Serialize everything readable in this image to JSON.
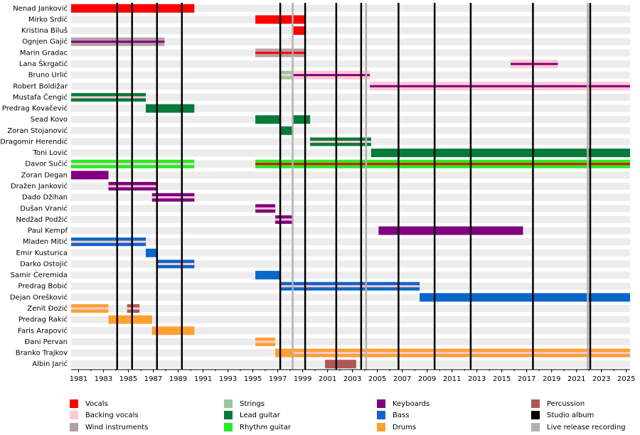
{
  "chart_data": {
    "type": "timeline",
    "xlim": [
      1980.4,
      2025.3
    ],
    "xticks": [
      1981,
      1983,
      1985,
      1987,
      1989,
      1991,
      1993,
      1995,
      1997,
      1999,
      2001,
      2003,
      2005,
      2007,
      2009,
      2011,
      2013,
      2015,
      2017,
      2019,
      2021,
      2023,
      2025
    ],
    "roles": [
      {
        "name": "Vocals",
        "color": "#ff0000"
      },
      {
        "name": "Backing vocals",
        "color": "#ffc8d2"
      },
      {
        "name": "Wind instruments",
        "color": "#b4a0a6"
      },
      {
        "name": "Strings",
        "color": "#99c89c"
      },
      {
        "name": "Lead guitar",
        "color": "#087a3a"
      },
      {
        "name": "Rhythm guitar",
        "color": "#22ee22"
      },
      {
        "name": "Keyboards",
        "color": "#800080"
      },
      {
        "name": "Bass",
        "color": "#0a66c8"
      },
      {
        "name": "Drums",
        "color": "#ffa030"
      },
      {
        "name": "Percussion",
        "color": "#b05656"
      }
    ],
    "events": [
      {
        "name": "Studio album",
        "color": "#000000",
        "x": [
          1984.1,
          1985.3,
          1987.3,
          1989.3,
          1997.2,
          1999.2,
          2001.7,
          2003.7,
          2006.7,
          2009.6,
          2012.5,
          2017.5,
          2022.1
        ]
      },
      {
        "name": "Live release recording",
        "color": "#b0b0b0",
        "x": [
          1998.2,
          2004.1,
          2021.9
        ]
      }
    ],
    "members": [
      {
        "name": "Nenad Janković",
        "periods": [
          {
            "start": 1980.4,
            "end": 1990.3,
            "role": "Vocals"
          }
        ]
      },
      {
        "name": "Mirko Srdić",
        "periods": [
          {
            "start": 1995.2,
            "end": 1999.2,
            "role": "Vocals"
          }
        ]
      },
      {
        "name": "Kristina Biluš",
        "periods": [
          {
            "start": 1998.2,
            "end": 1999.2,
            "role": "Vocals"
          }
        ]
      },
      {
        "name": "Ognjen Gajić",
        "periods": [
          {
            "start": 1980.4,
            "end": 1987.9,
            "role": "Wind instruments",
            "stripe": "Keyboards"
          }
        ]
      },
      {
        "name": "Marin Gradac",
        "periods": [
          {
            "start": 1995.2,
            "end": 1999.2,
            "role": "Wind instruments",
            "stripe": "Vocals"
          }
        ]
      },
      {
        "name": "Lana Škrgatić",
        "periods": [
          {
            "start": 2015.7,
            "end": 2019.5,
            "role": "Backing vocals",
            "stripe": "Keyboards"
          }
        ]
      },
      {
        "name": "Bruno Urlić",
        "periods": [
          {
            "start": 1997.2,
            "end": 1998.2,
            "role": "Strings",
            "stripe": "Backing vocals"
          },
          {
            "start": 1998.2,
            "end": 2004.4,
            "role": "Backing vocals",
            "stripe": "Keyboards"
          }
        ]
      },
      {
        "name": "Robert Boldižar",
        "periods": [
          {
            "start": 2004.4,
            "end": 2025.3,
            "role": "Backing vocals",
            "stripe": "Keyboards"
          }
        ]
      },
      {
        "name": "Mustafa Čengić",
        "periods": [
          {
            "start": 1980.4,
            "end": 1986.4,
            "role": "Lead guitar",
            "stripe": "Backing vocals"
          }
        ]
      },
      {
        "name": "Predrag Kovačević",
        "periods": [
          {
            "start": 1986.4,
            "end": 1990.3,
            "role": "Lead guitar"
          }
        ]
      },
      {
        "name": "Sead Kovo",
        "periods": [
          {
            "start": 1995.2,
            "end": 1997.2,
            "role": "Lead guitar"
          },
          {
            "start": 1998.2,
            "end": 1999.6,
            "role": "Lead guitar"
          }
        ]
      },
      {
        "name": "Zoran Stojanović",
        "periods": [
          {
            "start": 1997.2,
            "end": 1998.2,
            "role": "Lead guitar"
          }
        ]
      },
      {
        "name": "Dragomir Herendić",
        "periods": [
          {
            "start": 1999.6,
            "end": 2004.5,
            "role": "Lead guitar",
            "stripe": "Backing vocals"
          }
        ]
      },
      {
        "name": "Toni Lović",
        "periods": [
          {
            "start": 2004.5,
            "end": 2025.3,
            "role": "Lead guitar"
          }
        ]
      },
      {
        "name": "Davor Sučić",
        "periods": [
          {
            "start": 1980.4,
            "end": 1990.3,
            "role": "Rhythm guitar",
            "stripe": "Backing vocals"
          },
          {
            "start": 1995.2,
            "end": 2025.3,
            "role": "Rhythm guitar",
            "stripe": "Vocals"
          }
        ]
      },
      {
        "name": "Zoran Degan",
        "periods": [
          {
            "start": 1980.4,
            "end": 1983.4,
            "role": "Keyboards"
          }
        ]
      },
      {
        "name": "Dražen Janković",
        "periods": [
          {
            "start": 1983.4,
            "end": 1987.3,
            "role": "Keyboards",
            "stripe": "Backing vocals"
          }
        ]
      },
      {
        "name": "Dado Džihan",
        "periods": [
          {
            "start": 1986.9,
            "end": 1990.3,
            "role": "Keyboards",
            "stripe": "Backing vocals"
          }
        ]
      },
      {
        "name": "Dušan Vranić",
        "periods": [
          {
            "start": 1995.2,
            "end": 1996.8,
            "role": "Keyboards",
            "stripe": "Backing vocals"
          }
        ]
      },
      {
        "name": "Nedžad Podžić",
        "periods": [
          {
            "start": 1996.8,
            "end": 1998.2,
            "role": "Keyboards",
            "stripe": "Backing vocals"
          }
        ]
      },
      {
        "name": "Paul Kempf",
        "periods": [
          {
            "start": 2005.1,
            "end": 2016.7,
            "role": "Keyboards"
          }
        ]
      },
      {
        "name": "Mladen Mitić",
        "periods": [
          {
            "start": 1980.4,
            "end": 1986.4,
            "role": "Bass",
            "stripe": "Backing vocals"
          }
        ]
      },
      {
        "name": "Emir Kusturica",
        "periods": [
          {
            "start": 1986.4,
            "end": 1987.3,
            "role": "Bass"
          }
        ]
      },
      {
        "name": "Darko Ostojić",
        "periods": [
          {
            "start": 1987.3,
            "end": 1990.3,
            "role": "Bass",
            "stripe": "Backing vocals"
          }
        ]
      },
      {
        "name": "Samir Ćeremida",
        "periods": [
          {
            "start": 1995.2,
            "end": 1997.2,
            "role": "Bass"
          }
        ]
      },
      {
        "name": "Predrag Bobić",
        "periods": [
          {
            "start": 1997.2,
            "end": 2008.4,
            "role": "Bass",
            "stripe": "Backing vocals"
          }
        ]
      },
      {
        "name": "Dejan Orešković",
        "periods": [
          {
            "start": 2008.4,
            "end": 2025.3,
            "role": "Bass"
          }
        ]
      },
      {
        "name": "Zenit Đozić",
        "periods": [
          {
            "start": 1980.4,
            "end": 1983.4,
            "role": "Drums",
            "stripe": "Backing vocals"
          },
          {
            "start": 1984.9,
            "end": 1985.9,
            "role": "Percussion",
            "stripe": "Backing vocals"
          }
        ]
      },
      {
        "name": "Predrag Rakić",
        "periods": [
          {
            "start": 1983.4,
            "end": 1986.9,
            "role": "Drums"
          }
        ]
      },
      {
        "name": "Faris Arapović",
        "periods": [
          {
            "start": 1986.9,
            "end": 1990.3,
            "role": "Drums"
          }
        ]
      },
      {
        "name": "Đani Pervan",
        "periods": [
          {
            "start": 1995.2,
            "end": 1996.8,
            "role": "Drums",
            "stripe": "Backing vocals"
          }
        ]
      },
      {
        "name": "Branko Trajkov",
        "periods": [
          {
            "start": 1996.8,
            "end": 1998.2,
            "role": "Drums"
          },
          {
            "start": 1998.2,
            "end": 2025.3,
            "role": "Drums",
            "stripe": "Backing vocals"
          }
        ]
      },
      {
        "name": "Albin Jarić",
        "periods": [
          {
            "start": 2000.8,
            "end": 2003.3,
            "role": "Percussion"
          }
        ]
      }
    ]
  }
}
